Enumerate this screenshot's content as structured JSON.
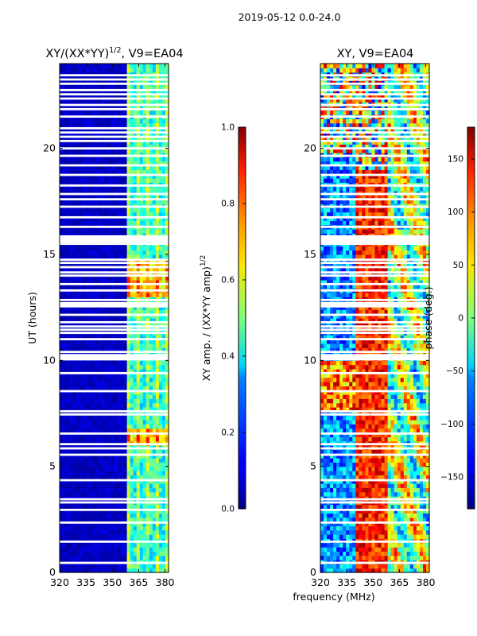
{
  "chart_data": [
    {
      "type": "heatmap",
      "panel": "left",
      "title": "XY/(XX*YY)",
      "title_superscript": "1/2",
      "title_suffix": ", V9=EA04",
      "xlabel": "",
      "ylabel": "UT (hours)",
      "xlim": [
        320,
        382
      ],
      "ylim": [
        0,
        24
      ],
      "xticks": [
        320,
        335,
        350,
        365,
        380
      ],
      "yticks": [
        0,
        5,
        10,
        15,
        20
      ],
      "colorbar": {
        "label": "XY amp. / (XX*YY amp)",
        "label_superscript": "1/2",
        "range": [
          0.0,
          1.0
        ],
        "ticks": [
          0.0,
          0.2,
          0.4,
          0.6,
          0.8,
          1.0
        ],
        "tick_labels": [
          "0.0",
          "0.2",
          "0.4",
          "0.6",
          "0.8",
          "1.0"
        ]
      },
      "description": "Low normalized amplitude (~0.05) for 320-359 MHz; elevated amplitude (~0.3-0.7) in 360-382 MHz; many flagged (blank) time rows"
    },
    {
      "type": "heatmap",
      "panel": "right",
      "title": "XY, V9=EA04",
      "xlabel": "frequency (MHz)",
      "ylabel": "",
      "xlim": [
        320,
        382
      ],
      "ylim": [
        0,
        24
      ],
      "xticks": [
        320,
        335,
        350,
        365,
        380
      ],
      "yticks": [
        0,
        5,
        10,
        15,
        20
      ],
      "colorbar": {
        "label": "phase (deg.)",
        "range": [
          -180,
          180
        ],
        "ticks": [
          -150,
          -100,
          -50,
          0,
          50,
          100,
          150
        ],
        "tick_labels": [
          "−150",
          "−100",
          "−50",
          "0",
          "50",
          "100",
          "150"
        ]
      },
      "description": "Phase map: negative phase (blue) near 320-340 MHz, positive phase (red) near 340-360 MHz, mixed values above 360 MHz; flagged rows shown blank"
    }
  ],
  "suptitle": "2019-05-12 0.0-24.0",
  "flagged_hours": [
    0.45,
    1.45,
    2.35,
    2.95,
    3.3,
    3.45,
    4.35,
    5.55,
    5.85,
    6.05,
    6.55,
    7.45,
    7.6,
    8.55,
    9.4,
    10.05,
    10.25,
    10.4,
    11.0,
    11.3,
    11.45,
    11.6,
    11.8,
    12.15,
    12.55,
    12.7,
    12.85,
    13.3,
    13.6,
    14.0,
    14.15,
    14.4,
    14.6,
    14.75,
    15.5,
    15.7,
    15.85,
    16.3,
    16.75,
    17.25,
    17.6,
    17.85,
    18.25,
    18.75,
    19.2,
    19.65,
    20.0,
    20.35,
    20.55,
    20.75,
    20.95,
    21.5,
    21.85,
    22.05,
    22.35,
    22.55,
    22.75,
    23.05,
    23.25,
    23.45
  ]
}
